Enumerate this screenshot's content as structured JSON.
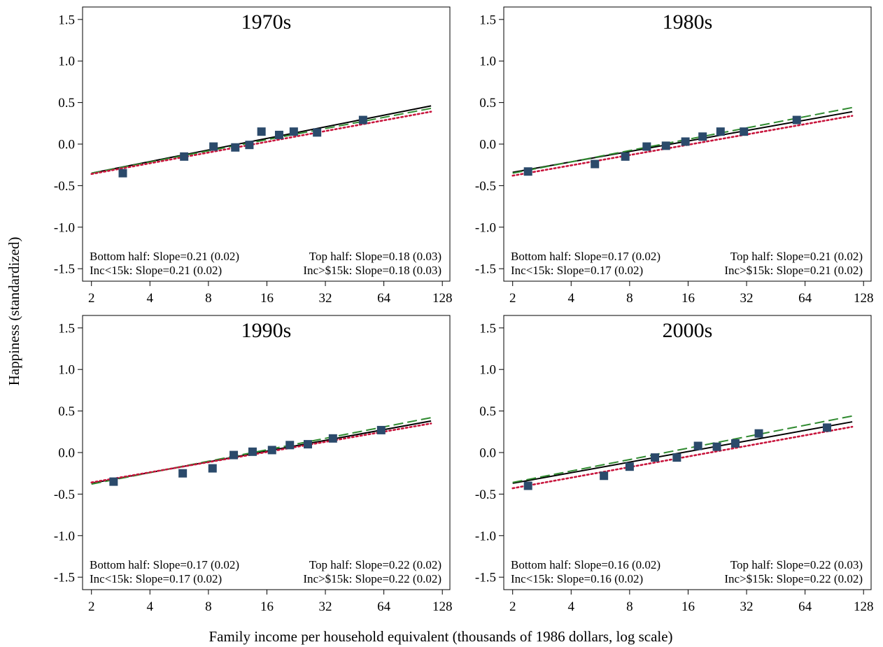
{
  "figure": {
    "y_axis_title": "Happiness (standardized)",
    "x_axis_title": "Family income per household equivalent (thousands of 1986 dollars, log scale)"
  },
  "chart_data": [
    {
      "type": "scatter",
      "title": "1970s",
      "x_scale": "log2",
      "xlim": [
        1.8,
        140
      ],
      "ylim": [
        -1.65,
        1.65
      ],
      "x_ticks": [
        2,
        4,
        8,
        16,
        32,
        64,
        128
      ],
      "y_ticks": [
        -1.5,
        -1.0,
        -0.5,
        0.0,
        0.5,
        1.0,
        1.5
      ],
      "x_tick_labels": [
        "2",
        "4",
        "8",
        "16",
        "32",
        "64",
        "128"
      ],
      "y_tick_labels": [
        "-1.5",
        "-1.0",
        "-0.5",
        "0.0",
        "0.5",
        "1.0",
        "1.5"
      ],
      "grid": false,
      "points": [
        {
          "x": 2.9,
          "y": -0.35
        },
        {
          "x": 6.0,
          "y": -0.15
        },
        {
          "x": 8.5,
          "y": -0.03
        },
        {
          "x": 11.0,
          "y": -0.04
        },
        {
          "x": 13.0,
          "y": -0.01
        },
        {
          "x": 15.0,
          "y": 0.15
        },
        {
          "x": 18.5,
          "y": 0.11
        },
        {
          "x": 22.0,
          "y": 0.15
        },
        {
          "x": 29.0,
          "y": 0.14
        },
        {
          "x": 50.0,
          "y": 0.29
        }
      ],
      "fit_lines": [
        {
          "style": "solid",
          "color": "#000000",
          "x": [
            2,
            112
          ],
          "y": [
            -0.35,
            0.46
          ]
        },
        {
          "style": "dashed",
          "color": "#2f8a2f",
          "x": [
            2,
            112
          ],
          "y": [
            -0.35,
            0.43
          ]
        },
        {
          "style": "dotted",
          "color": "#c8143c",
          "x": [
            2,
            112
          ],
          "y": [
            -0.36,
            0.39
          ]
        }
      ],
      "annotations": {
        "top_left": "Bottom half: Slope=0.21 (0.02)",
        "top_right": "Top half: Slope=0.18 (0.03)",
        "bottom_left": "Inc<15k: Slope=0.21 (0.02)",
        "bottom_right": "Inc>$15k: Slope=0.18 (0.03)"
      }
    },
    {
      "type": "scatter",
      "title": "1980s",
      "x_scale": "log2",
      "xlim": [
        1.8,
        140
      ],
      "ylim": [
        -1.65,
        1.65
      ],
      "x_ticks": [
        2,
        4,
        8,
        16,
        32,
        64,
        128
      ],
      "y_ticks": [
        -1.5,
        -1.0,
        -0.5,
        0.0,
        0.5,
        1.0,
        1.5
      ],
      "x_tick_labels": [
        "2",
        "4",
        "8",
        "16",
        "32",
        "64",
        "128"
      ],
      "y_tick_labels": [
        "-1.5",
        "-1.0",
        "-0.5",
        "0.0",
        "0.5",
        "1.0",
        "1.5"
      ],
      "grid": false,
      "points": [
        {
          "x": 2.4,
          "y": -0.33
        },
        {
          "x": 5.3,
          "y": -0.24
        },
        {
          "x": 7.6,
          "y": -0.15
        },
        {
          "x": 9.8,
          "y": -0.03
        },
        {
          "x": 12.3,
          "y": -0.02
        },
        {
          "x": 15.5,
          "y": 0.03
        },
        {
          "x": 19.0,
          "y": 0.09
        },
        {
          "x": 23.5,
          "y": 0.15
        },
        {
          "x": 31.0,
          "y": 0.15
        },
        {
          "x": 58.0,
          "y": 0.29
        }
      ],
      "fit_lines": [
        {
          "style": "solid",
          "color": "#000000",
          "x": [
            2,
            112
          ],
          "y": [
            -0.34,
            0.39
          ]
        },
        {
          "style": "dashed",
          "color": "#2f8a2f",
          "x": [
            2,
            112
          ],
          "y": [
            -0.35,
            0.44
          ]
        },
        {
          "style": "dotted",
          "color": "#c8143c",
          "x": [
            2,
            112
          ],
          "y": [
            -0.38,
            0.34
          ]
        }
      ],
      "annotations": {
        "top_left": "Bottom half: Slope=0.17 (0.02)",
        "top_right": "Top half: Slope=0.21 (0.02)",
        "bottom_left": "Inc<15k: Slope=0.17 (0.02)",
        "bottom_right": "Inc>$15k: Slope=0.21 (0.02)"
      }
    },
    {
      "type": "scatter",
      "title": "1990s",
      "x_scale": "log2",
      "xlim": [
        1.8,
        140
      ],
      "ylim": [
        -1.65,
        1.65
      ],
      "x_ticks": [
        2,
        4,
        8,
        16,
        32,
        64,
        128
      ],
      "y_ticks": [
        -1.5,
        -1.0,
        -0.5,
        0.0,
        0.5,
        1.0,
        1.5
      ],
      "x_tick_labels": [
        "2",
        "4",
        "8",
        "16",
        "32",
        "64",
        "128"
      ],
      "y_tick_labels": [
        "-1.5",
        "-1.0",
        "-0.5",
        "0.0",
        "0.5",
        "1.0",
        "1.5"
      ],
      "grid": false,
      "points": [
        {
          "x": 2.6,
          "y": -0.35
        },
        {
          "x": 5.9,
          "y": -0.25
        },
        {
          "x": 8.4,
          "y": -0.19
        },
        {
          "x": 10.8,
          "y": -0.03
        },
        {
          "x": 13.5,
          "y": 0.01
        },
        {
          "x": 17.0,
          "y": 0.03
        },
        {
          "x": 21.0,
          "y": 0.09
        },
        {
          "x": 26.0,
          "y": 0.1
        },
        {
          "x": 35.0,
          "y": 0.17
        },
        {
          "x": 62.0,
          "y": 0.27
        }
      ],
      "fit_lines": [
        {
          "style": "solid",
          "color": "#000000",
          "x": [
            2,
            112
          ],
          "y": [
            -0.37,
            0.38
          ]
        },
        {
          "style": "dashed",
          "color": "#2f8a2f",
          "x": [
            2,
            112
          ],
          "y": [
            -0.38,
            0.42
          ]
        },
        {
          "style": "dotted",
          "color": "#c8143c",
          "x": [
            2,
            112
          ],
          "y": [
            -0.36,
            0.35
          ]
        }
      ],
      "annotations": {
        "top_left": "Bottom half: Slope=0.17 (0.02)",
        "top_right": "Top half: Slope=0.22 (0.02)",
        "bottom_left": "Inc<15k: Slope=0.17 (0.02)",
        "bottom_right": "Inc>$15k: Slope=0.22 (0.02)"
      }
    },
    {
      "type": "scatter",
      "title": "2000s",
      "x_scale": "log2",
      "xlim": [
        1.8,
        140
      ],
      "ylim": [
        -1.65,
        1.65
      ],
      "x_ticks": [
        2,
        4,
        8,
        16,
        32,
        64,
        128
      ],
      "y_ticks": [
        -1.5,
        -1.0,
        -0.5,
        0.0,
        0.5,
        1.0,
        1.5
      ],
      "x_tick_labels": [
        "2",
        "4",
        "8",
        "16",
        "32",
        "64",
        "128"
      ],
      "y_tick_labels": [
        "-1.5",
        "-1.0",
        "-0.5",
        "0.0",
        "0.5",
        "1.0",
        "1.5"
      ],
      "grid": false,
      "points": [
        {
          "x": 2.4,
          "y": -0.4
        },
        {
          "x": 5.9,
          "y": -0.28
        },
        {
          "x": 8.0,
          "y": -0.17
        },
        {
          "x": 10.8,
          "y": -0.06
        },
        {
          "x": 14.0,
          "y": -0.06
        },
        {
          "x": 18.0,
          "y": 0.08
        },
        {
          "x": 22.5,
          "y": 0.07
        },
        {
          "x": 28.0,
          "y": 0.11
        },
        {
          "x": 37.0,
          "y": 0.23
        },
        {
          "x": 83.0,
          "y": 0.3
        }
      ],
      "fit_lines": [
        {
          "style": "solid",
          "color": "#000000",
          "x": [
            2,
            112
          ],
          "y": [
            -0.37,
            0.37
          ]
        },
        {
          "style": "dashed",
          "color": "#2f8a2f",
          "x": [
            2,
            112
          ],
          "y": [
            -0.36,
            0.44
          ]
        },
        {
          "style": "dotted",
          "color": "#c8143c",
          "x": [
            2,
            112
          ],
          "y": [
            -0.43,
            0.31
          ]
        }
      ],
      "annotations": {
        "top_left": "Bottom half: Slope=0.16 (0.02)",
        "top_right": "Top half: Slope=0.22 (0.03)",
        "bottom_left": "Inc<15k: Slope=0.16 (0.02)",
        "bottom_right": "Inc>$15k: Slope=0.22 (0.02)"
      }
    }
  ]
}
